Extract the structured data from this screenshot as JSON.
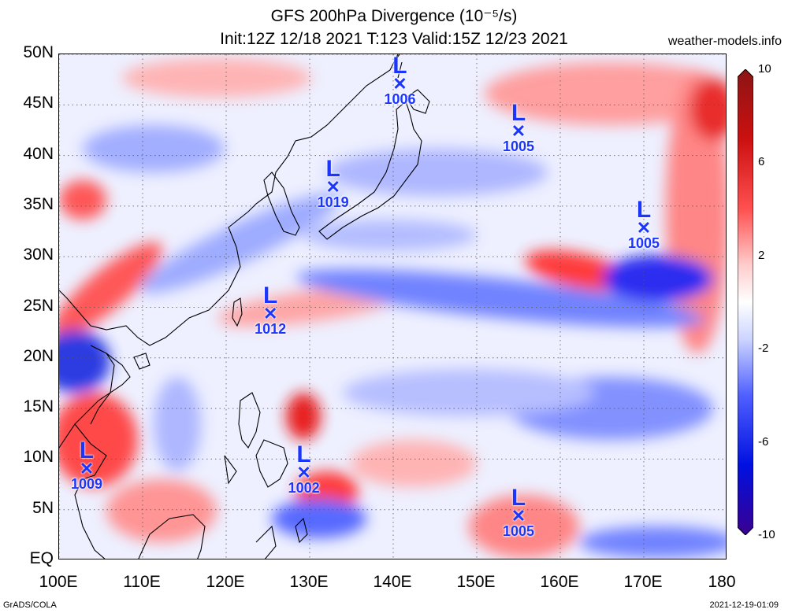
{
  "title": {
    "line1": "GFS 200hPa Divergence (10⁻⁵/s)",
    "line2": "Init:12Z 12/18 2021 T:123 Valid:15Z 12/23 2021"
  },
  "site": "weather-models.info",
  "footer": {
    "left": "GrADS/COLA",
    "right": "2021-12-19-01:09"
  },
  "axes": {
    "lat_labels": [
      "50N",
      "45N",
      "40N",
      "35N",
      "30N",
      "25N",
      "20N",
      "15N",
      "10N",
      "5N",
      "EQ"
    ],
    "lat_values": [
      50,
      45,
      40,
      35,
      30,
      25,
      20,
      15,
      10,
      5,
      0
    ],
    "lon_labels": [
      "100E",
      "110E",
      "120E",
      "130E",
      "140E",
      "150E",
      "160E",
      "170E",
      "180"
    ],
    "lon_values": [
      100,
      110,
      120,
      130,
      140,
      150,
      160,
      170,
      180
    ]
  },
  "colorbar": {
    "labels": [
      "10",
      "6",
      "2",
      "-2",
      "-6",
      "-10"
    ],
    "values": [
      10,
      6,
      2,
      -2,
      -6,
      -10
    ],
    "colors": [
      "#8c1414",
      "#e60000",
      "#ff6666",
      "#ffd6d6",
      "#ffffff",
      "#d0d8ff",
      "#6a7dff",
      "#0010e8",
      "#3a0090"
    ]
  },
  "lows": [
    {
      "label": "L",
      "pressure": "1006",
      "lon": 140.8,
      "lat": 47.2
    },
    {
      "label": "L",
      "pressure": "1005",
      "lon": 155.0,
      "lat": 42.5
    },
    {
      "label": "L",
      "pressure": "1019",
      "lon": 132.8,
      "lat": 37.0
    },
    {
      "label": "L",
      "pressure": "1005",
      "lon": 170.0,
      "lat": 33.0
    },
    {
      "label": "L",
      "pressure": "1012",
      "lon": 125.3,
      "lat": 24.5
    },
    {
      "label": "L",
      "pressure": "1009",
      "lon": 103.3,
      "lat": 9.2
    },
    {
      "label": "L",
      "pressure": "1002",
      "lon": 129.3,
      "lat": 8.8
    },
    {
      "label": "L",
      "pressure": "1005",
      "lon": 155.0,
      "lat": 4.5
    }
  ]
}
